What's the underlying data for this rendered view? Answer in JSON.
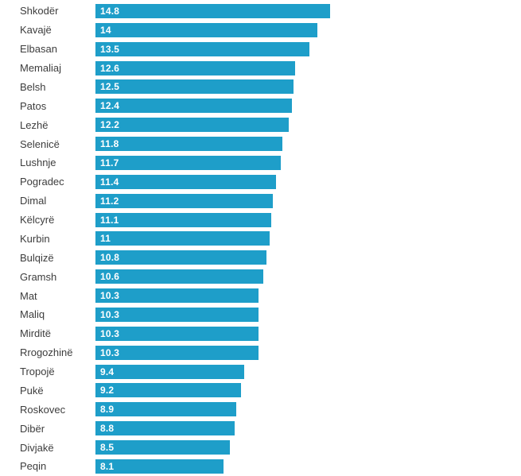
{
  "chart_data": {
    "type": "bar",
    "orientation": "horizontal",
    "title": "",
    "xlabel": "",
    "ylabel": "",
    "xlim": [
      0,
      14.8
    ],
    "grid": false,
    "legend": false,
    "bar_color": "#1e9ec9",
    "category_label_color": "#3d3d3d",
    "value_label_color": "#ffffff",
    "categories": [
      "Shkodër",
      "Kavajë",
      "Elbasan",
      "Memaliaj",
      "Belsh",
      "Patos",
      "Lezhë",
      "Selenicë",
      "Lushnje",
      "Pogradec",
      "Dimal",
      "Këlcyrë",
      "Kurbin",
      "Bulqizë",
      "Gramsh",
      "Mat",
      "Maliq",
      "Mirditë",
      "Rrogozhinë",
      "Tropojë",
      "Pukë",
      "Roskovec",
      "Dibër",
      "Divjakë",
      "Peqin"
    ],
    "values": [
      14.8,
      14,
      13.5,
      12.6,
      12.5,
      12.4,
      12.2,
      11.8,
      11.7,
      11.4,
      11.2,
      11.1,
      11,
      10.8,
      10.6,
      10.3,
      10.3,
      10.3,
      10.3,
      9.4,
      9.2,
      8.9,
      8.8,
      8.5,
      8.1
    ],
    "value_labels": [
      "14.8",
      "14",
      "13.5",
      "12.6",
      "12.5",
      "12.4",
      "12.2",
      "11.8",
      "11.7",
      "11.4",
      "11.2",
      "11.1",
      "11",
      "10.8",
      "10.6",
      "10.3",
      "10.3",
      "10.3",
      "10.3",
      "9.4",
      "9.2",
      "8.9",
      "8.8",
      "8.5",
      "8.1"
    ]
  }
}
